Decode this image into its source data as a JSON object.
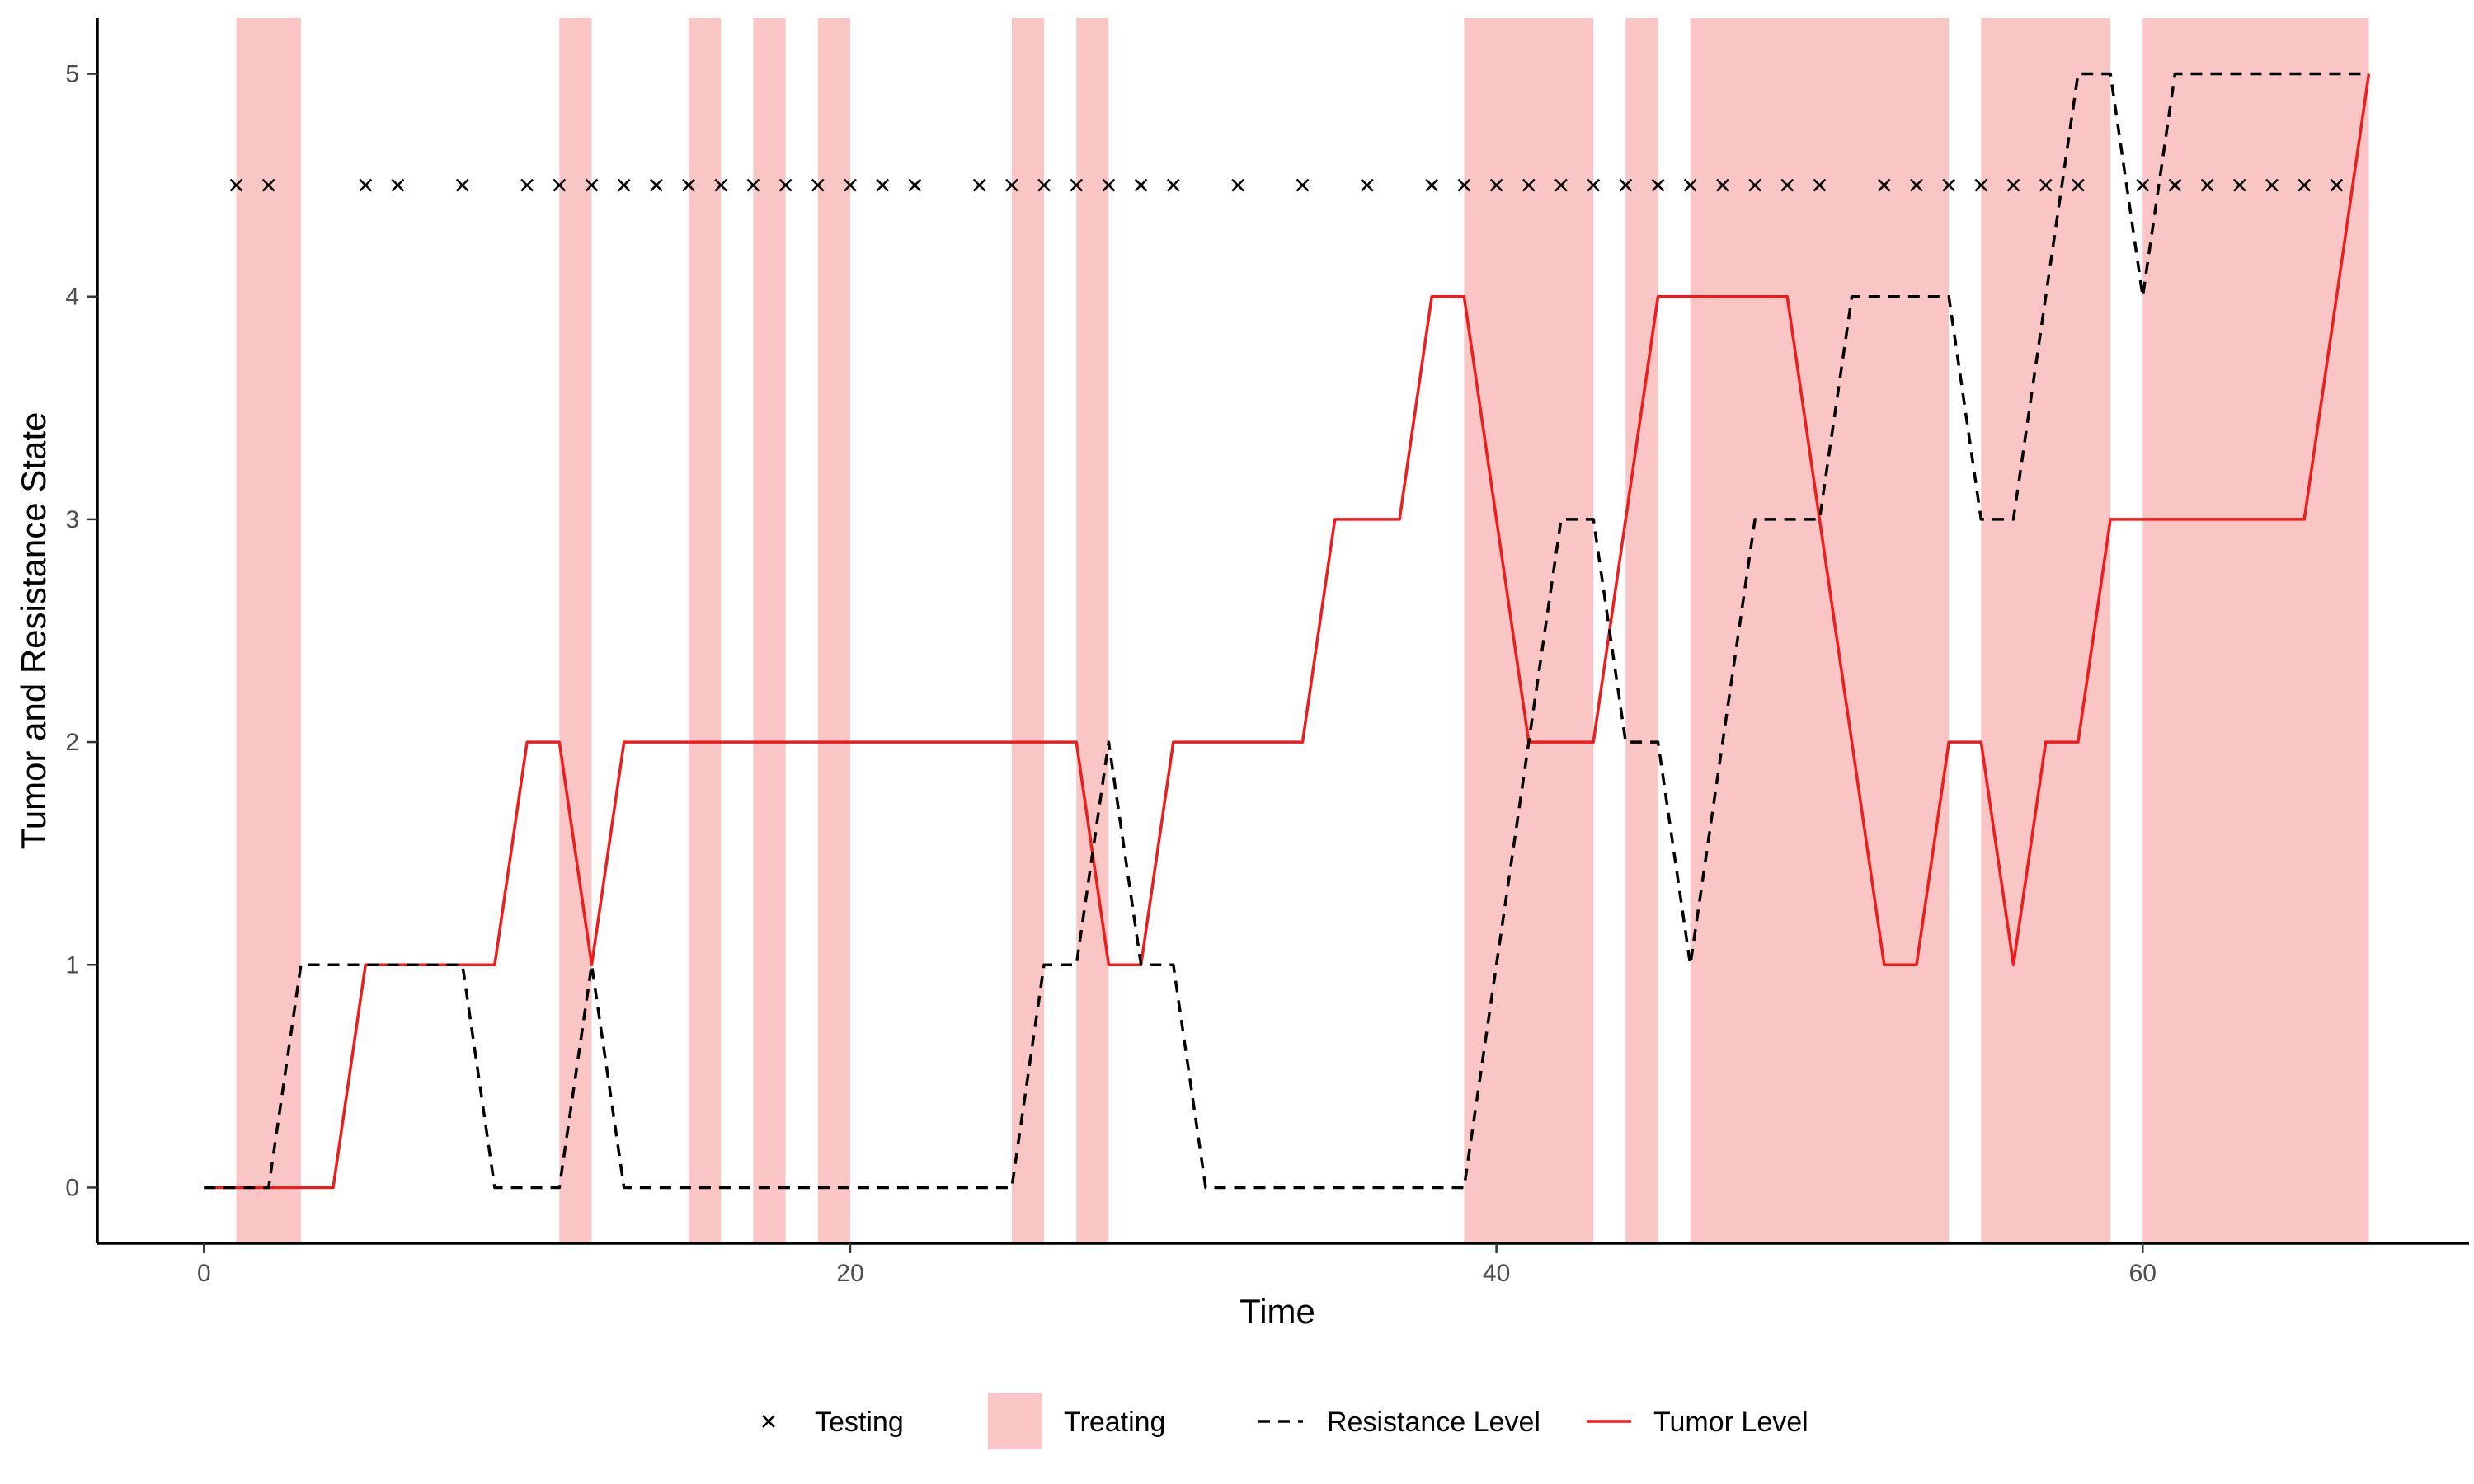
{
  "chart_data": {
    "type": "line",
    "xlabel": "Time",
    "ylabel": "Tumor and Resistance State",
    "xlim": [
      -3.3,
      70.1
    ],
    "ylim": [
      -0.25,
      5.25
    ],
    "x_ticks": [
      0,
      20,
      40,
      60
    ],
    "y_ticks": [
      0,
      1,
      2,
      3,
      4,
      5
    ],
    "grid": false,
    "legend_position": "bottom",
    "legend": [
      {
        "key": "testing",
        "label": "Testing"
      },
      {
        "key": "treating",
        "label": "Treating"
      },
      {
        "key": "resistance",
        "label": "Resistance Level"
      },
      {
        "key": "tumor",
        "label": "Tumor Level"
      }
    ],
    "colors": {
      "tumor": "#ee1c1c",
      "resistance": "#000000",
      "treating": "#f9c6c5",
      "testing": "#000000",
      "axis": "#000000",
      "tick_label": "#4d4d4d"
    },
    "testing_marker_y": 4.5,
    "testing_times": [
      1,
      2,
      5,
      6,
      8,
      10,
      11,
      12,
      13,
      14,
      15,
      16,
      17,
      18,
      19,
      20,
      21,
      22,
      24,
      25,
      26,
      27,
      28,
      29,
      30,
      32,
      34,
      36,
      38,
      39,
      40,
      41,
      42,
      43,
      44,
      45,
      46,
      47,
      48,
      49,
      50,
      52,
      53,
      54,
      55,
      56,
      57,
      58,
      60,
      61,
      62,
      63,
      64,
      65,
      66
    ],
    "treating_intervals": [
      [
        1,
        3
      ],
      [
        11,
        12
      ],
      [
        15,
        16
      ],
      [
        17,
        18
      ],
      [
        19,
        20
      ],
      [
        25,
        26
      ],
      [
        27,
        28
      ],
      [
        39,
        43
      ],
      [
        44,
        45
      ],
      [
        46,
        54
      ],
      [
        55,
        59
      ],
      [
        60,
        67
      ]
    ],
    "series": [
      {
        "key": "tumor",
        "name": "Tumor Level",
        "style": "solid",
        "x": [
          0,
          1,
          2,
          3,
          4,
          5,
          6,
          7,
          8,
          9,
          10,
          11,
          12,
          13,
          14,
          15,
          16,
          17,
          18,
          19,
          20,
          21,
          22,
          23,
          24,
          25,
          26,
          27,
          28,
          29,
          30,
          31,
          32,
          33,
          34,
          35,
          36,
          37,
          38,
          39,
          40,
          41,
          42,
          43,
          44,
          45,
          46,
          47,
          48,
          49,
          50,
          51,
          52,
          53,
          54,
          55,
          56,
          57,
          58,
          59,
          60,
          61,
          62,
          63,
          64,
          65,
          66,
          67
        ],
        "values": [
          0,
          0,
          0,
          0,
          0,
          1,
          1,
          1,
          1,
          1,
          2,
          2,
          1,
          2,
          2,
          2,
          2,
          2,
          2,
          2,
          2,
          2,
          2,
          2,
          2,
          2,
          2,
          2,
          1,
          1,
          2,
          2,
          2,
          2,
          2,
          3,
          3,
          3,
          4,
          4,
          3,
          2,
          2,
          2,
          3,
          4,
          4,
          4,
          4,
          4,
          3,
          2,
          1,
          1,
          2,
          2,
          1,
          2,
          2,
          3,
          3,
          3,
          3,
          3,
          3,
          3,
          4,
          5
        ]
      },
      {
        "key": "resistance",
        "name": "Resistance Level",
        "style": "dashed",
        "x": [
          0,
          1,
          2,
          3,
          4,
          5,
          6,
          7,
          8,
          9,
          10,
          11,
          12,
          13,
          14,
          15,
          16,
          17,
          18,
          19,
          20,
          21,
          22,
          23,
          24,
          25,
          26,
          27,
          28,
          29,
          30,
          31,
          32,
          33,
          34,
          35,
          36,
          37,
          38,
          39,
          40,
          41,
          42,
          43,
          44,
          45,
          46,
          47,
          48,
          49,
          50,
          51,
          52,
          53,
          54,
          55,
          56,
          57,
          58,
          59,
          60,
          61,
          62,
          63,
          64,
          65,
          66,
          67
        ],
        "values": [
          0,
          0,
          0,
          1,
          1,
          1,
          1,
          1,
          1,
          0,
          0,
          0,
          1,
          0,
          0,
          0,
          0,
          0,
          0,
          0,
          0,
          0,
          0,
          0,
          0,
          0,
          1,
          1,
          2,
          1,
          1,
          0,
          0,
          0,
          0,
          0,
          0,
          0,
          0,
          0,
          1,
          2,
          3,
          3,
          2,
          2,
          1,
          2,
          3,
          3,
          3,
          4,
          4,
          4,
          4,
          3,
          3,
          4,
          5,
          5,
          4,
          5,
          5,
          5,
          5,
          5,
          5,
          5
        ]
      }
    ]
  }
}
